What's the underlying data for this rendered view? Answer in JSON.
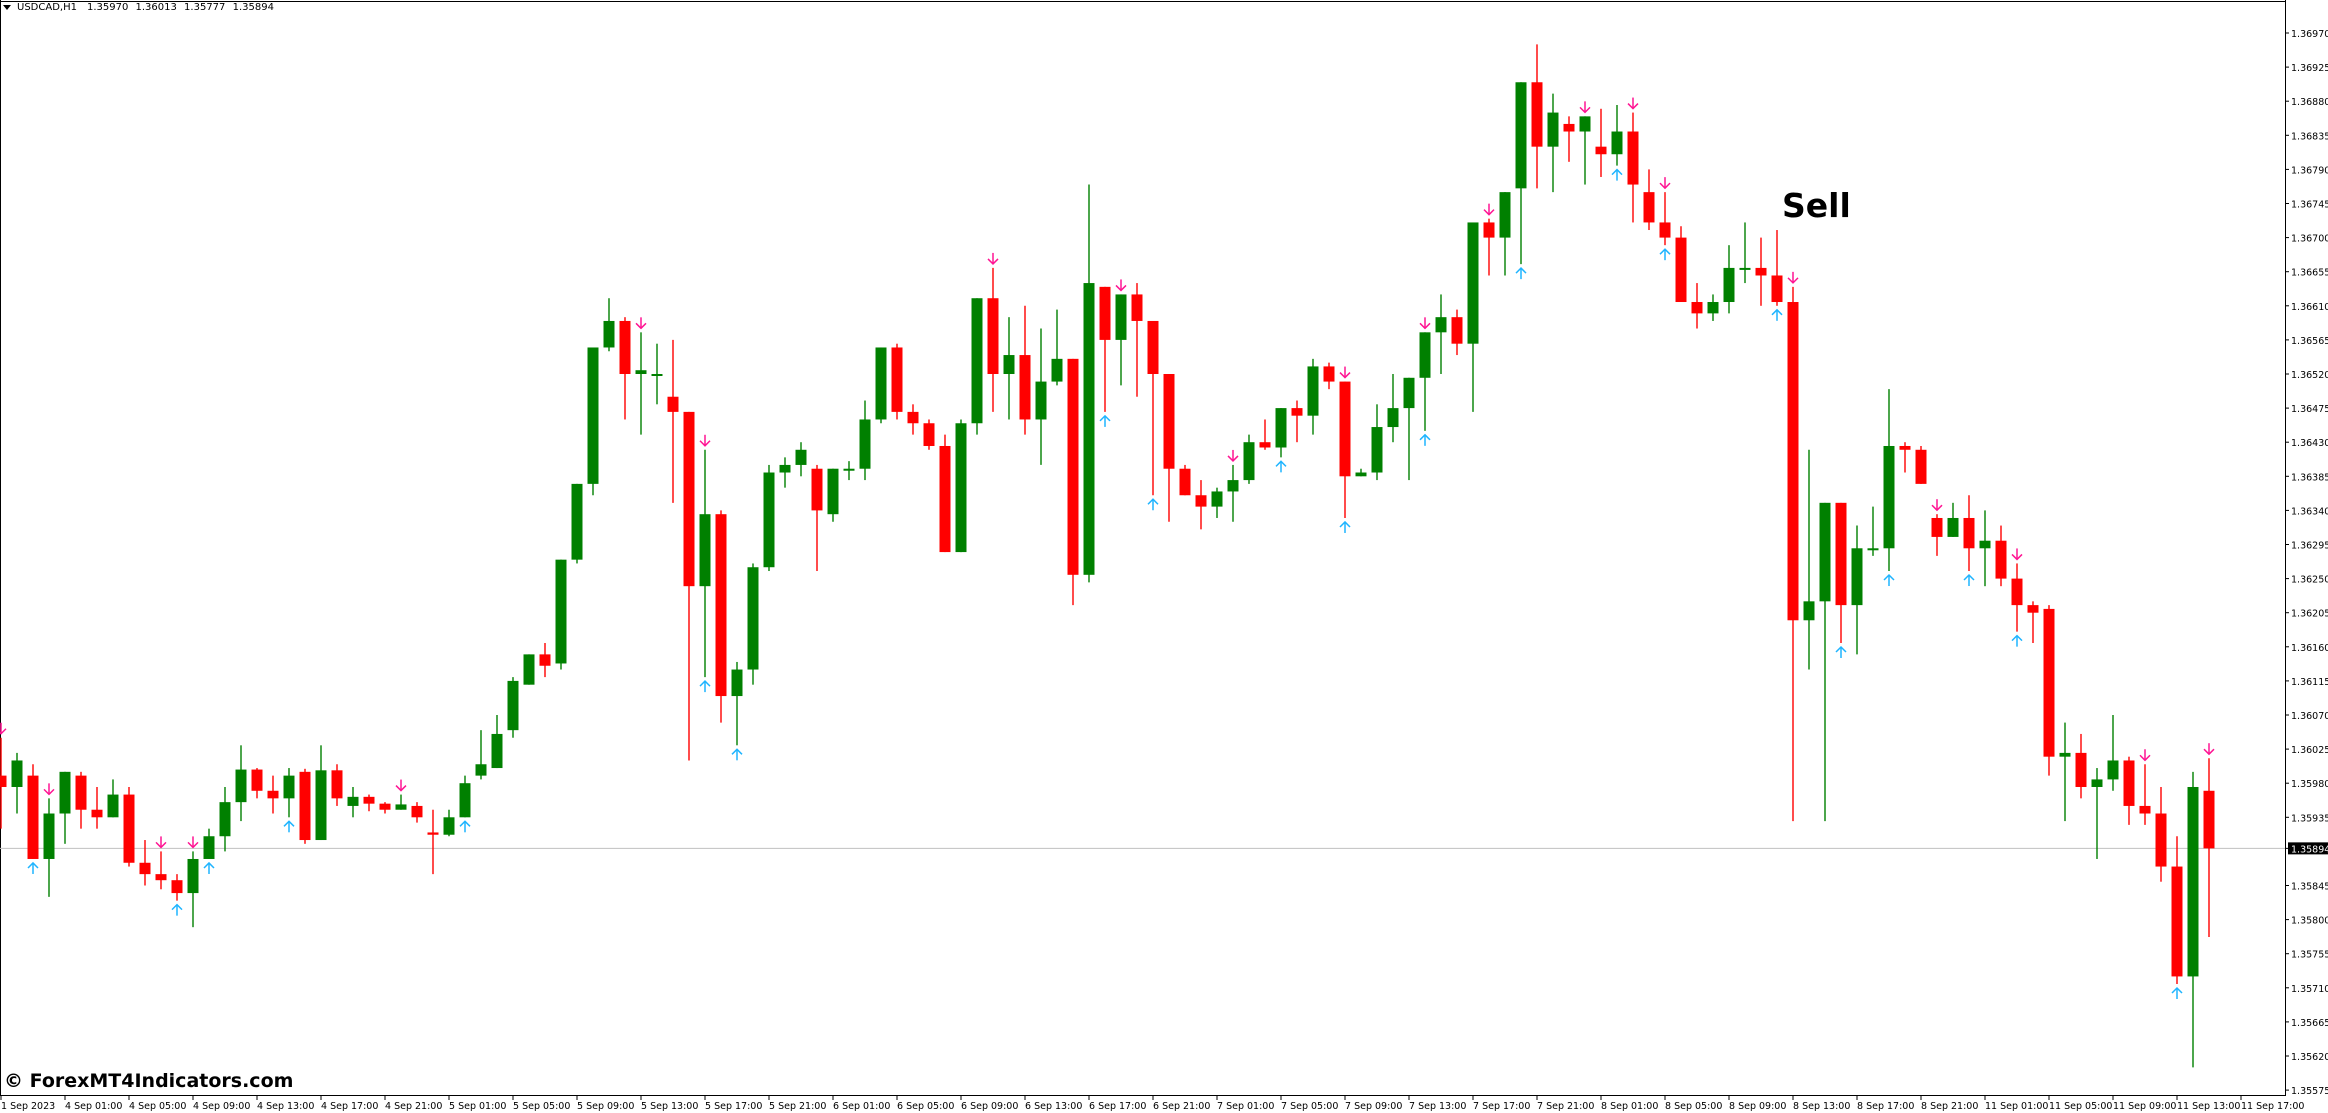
{
  "header": {
    "symbol": "USDCAD,H1",
    "open": "1.35970",
    "high": "1.36013",
    "low": "1.35777",
    "close": "1.35894"
  },
  "annotations": {
    "signal_label": "Sell",
    "watermark": "© ForexMT4Indicators.com",
    "current_price_label": "1.35894"
  },
  "colors": {
    "bull": "#008000",
    "bear": "#ff0000",
    "sell_arrow": "#ff1493",
    "buy_arrow": "#1eb4ff",
    "price_line": "#c0c0c0",
    "axis": "#000000",
    "price_label_bg": "#000000",
    "price_label_fg": "#ffffff"
  },
  "chart_data": {
    "type": "candlestick",
    "title": "USDCAD,H1",
    "xlabel": "",
    "ylabel": "",
    "ylim": [
      1.35555,
      1.3701
    ],
    "grid": false,
    "current_price": 1.35894,
    "y_ticks": [
      "1.36970",
      "1.36925",
      "1.36880",
      "1.36835",
      "1.36790",
      "1.36745",
      "1.36700",
      "1.36655",
      "1.36610",
      "1.36565",
      "1.36520",
      "1.36475",
      "1.36430",
      "1.36385",
      "1.36340",
      "1.36295",
      "1.36250",
      "1.36205",
      "1.36160",
      "1.36115",
      "1.36070",
      "1.36025",
      "1.35980",
      "1.35935",
      "1.35894",
      "1.35845",
      "1.35800",
      "1.35755",
      "1.35710",
      "1.35665",
      "1.35620",
      "1.35575"
    ],
    "x_ticks": [
      {
        "label": "1 Sep 2023",
        "index": 0
      },
      {
        "label": "4 Sep 01:00",
        "index": 4
      },
      {
        "label": "4 Sep 05:00",
        "index": 8
      },
      {
        "label": "4 Sep 09:00",
        "index": 12
      },
      {
        "label": "4 Sep 13:00",
        "index": 16
      },
      {
        "label": "4 Sep 17:00",
        "index": 20
      },
      {
        "label": "4 Sep 21:00",
        "index": 24
      },
      {
        "label": "5 Sep 01:00",
        "index": 28
      },
      {
        "label": "5 Sep 05:00",
        "index": 32
      },
      {
        "label": "5 Sep 09:00",
        "index": 36
      },
      {
        "label": "5 Sep 13:00",
        "index": 40
      },
      {
        "label": "5 Sep 17:00",
        "index": 44
      },
      {
        "label": "5 Sep 21:00",
        "index": 48
      },
      {
        "label": "6 Sep 01:00",
        "index": 52
      },
      {
        "label": "6 Sep 05:00",
        "index": 56
      },
      {
        "label": "6 Sep 09:00",
        "index": 60
      },
      {
        "label": "6 Sep 13:00",
        "index": 64
      },
      {
        "label": "6 Sep 17:00",
        "index": 68
      },
      {
        "label": "6 Sep 21:00",
        "index": 72
      },
      {
        "label": "7 Sep 01:00",
        "index": 76
      },
      {
        "label": "7 Sep 05:00",
        "index": 80
      },
      {
        "label": "7 Sep 09:00",
        "index": 84
      },
      {
        "label": "7 Sep 13:00",
        "index": 88
      },
      {
        "label": "7 Sep 17:00",
        "index": 92
      },
      {
        "label": "7 Sep 21:00",
        "index": 96
      },
      {
        "label": "8 Sep 01:00",
        "index": 100
      },
      {
        "label": "8 Sep 05:00",
        "index": 104
      },
      {
        "label": "8 Sep 09:00",
        "index": 108
      },
      {
        "label": "8 Sep 13:00",
        "index": 112
      },
      {
        "label": "8 Sep 17:00",
        "index": 116
      },
      {
        "label": "8 Sep 21:00",
        "index": 120
      },
      {
        "label": "11 Sep 01:00",
        "index": 124
      },
      {
        "label": "11 Sep 05:00",
        "index": 128
      },
      {
        "label": "11 Sep 09:00",
        "index": 132
      },
      {
        "label": "11 Sep 13:00",
        "index": 136
      },
      {
        "label": "11 Sep 17:00",
        "index": 140
      }
    ],
    "candles": [
      [
        1.3599,
        1.3604,
        1.3592,
        1.35975
      ],
      [
        1.35975,
        1.3602,
        1.3594,
        1.3601
      ],
      [
        1.3599,
        1.36005,
        1.3588,
        1.3588
      ],
      [
        1.3588,
        1.3596,
        1.3583,
        1.3594
      ],
      [
        1.3594,
        1.3599,
        1.359,
        1.35995
      ],
      [
        1.3599,
        1.35995,
        1.3592,
        1.35945
      ],
      [
        1.35945,
        1.35975,
        1.3592,
        1.35935
      ],
      [
        1.35935,
        1.35985,
        1.3595,
        1.35965
      ],
      [
        1.35965,
        1.35975,
        1.3587,
        1.35875
      ],
      [
        1.35875,
        1.35905,
        1.35845,
        1.3586
      ],
      [
        1.3586,
        1.3589,
        1.3584,
        1.35852
      ],
      [
        1.35852,
        1.3586,
        1.35825,
        1.35835
      ],
      [
        1.35835,
        1.3589,
        1.3579,
        1.3588
      ],
      [
        1.3588,
        1.3592,
        1.3588,
        1.3591
      ],
      [
        1.3591,
        1.35975,
        1.3589,
        1.35955
      ],
      [
        1.35955,
        1.3603,
        1.3593,
        1.35998
      ],
      [
        1.35998,
        1.36,
        1.3596,
        1.3597
      ],
      [
        1.3597,
        1.3599,
        1.3594,
        1.3596
      ],
      [
        1.3596,
        1.36,
        1.35935,
        1.3599
      ],
      [
        1.35995,
        1.35999,
        1.359,
        1.35905
      ],
      [
        1.35905,
        1.3603,
        1.35905,
        1.35997
      ],
      [
        1.35997,
        1.36005,
        1.3595,
        1.3596
      ],
      [
        1.3595,
        1.35975,
        1.35935,
        1.35962
      ],
      [
        1.35962,
        1.35965,
        1.35943,
        1.35953
      ],
      [
        1.35953,
        1.35955,
        1.3594,
        1.35945
      ],
      [
        1.35945,
        1.35965,
        1.35945,
        1.35952
      ],
      [
        1.3595,
        1.35955,
        1.35928,
        1.35935
      ],
      [
        1.35915,
        1.35945,
        1.3586,
        1.35912
      ],
      [
        1.35912,
        1.35945,
        1.3591,
        1.35935
      ],
      [
        1.35935,
        1.3599,
        1.35935,
        1.3598
      ],
      [
        1.3599,
        1.3605,
        1.35985,
        1.36005
      ],
      [
        1.36,
        1.3607,
        1.36,
        1.36045
      ],
      [
        1.3605,
        1.3612,
        1.3604,
        1.36115
      ],
      [
        1.3611,
        1.36145,
        1.3611,
        1.3615
      ],
      [
        1.3615,
        1.36165,
        1.3612,
        1.36135
      ],
      [
        1.36138,
        1.36195,
        1.3613,
        1.36275
      ],
      [
        1.36275,
        1.36345,
        1.3627,
        1.36375
      ],
      [
        1.36375,
        1.3637,
        1.3636,
        1.36555
      ],
      [
        1.36555,
        1.3662,
        1.3655,
        1.3659
      ],
      [
        1.3659,
        1.36595,
        1.3646,
        1.3652
      ],
      [
        1.3652,
        1.36575,
        1.3644,
        1.36525
      ],
      [
        1.3652,
        1.3656,
        1.3648,
        1.3652
      ],
      [
        1.3649,
        1.36565,
        1.3635,
        1.3647
      ],
      [
        1.3647,
        1.3647,
        1.3601,
        1.3624
      ],
      [
        1.3624,
        1.3642,
        1.3612,
        1.36335
      ],
      [
        1.36335,
        1.3634,
        1.3606,
        1.36095
      ],
      [
        1.36095,
        1.3614,
        1.3603,
        1.3613
      ],
      [
        1.3613,
        1.3627,
        1.3611,
        1.36265
      ],
      [
        1.36265,
        1.364,
        1.3626,
        1.3639
      ],
      [
        1.3639,
        1.3641,
        1.3637,
        1.364
      ],
      [
        1.364,
        1.3643,
        1.36385,
        1.3642
      ],
      [
        1.36395,
        1.364,
        1.3626,
        1.3634
      ],
      [
        1.36335,
        1.36395,
        1.36325,
        1.36395
      ],
      [
        1.36395,
        1.36405,
        1.3638,
        1.36395
      ],
      [
        1.36395,
        1.36485,
        1.3638,
        1.3646
      ],
      [
        1.3646,
        1.36545,
        1.36455,
        1.36555
      ],
      [
        1.36555,
        1.3656,
        1.3646,
        1.3647
      ],
      [
        1.3647,
        1.3648,
        1.3644,
        1.36455
      ],
      [
        1.36455,
        1.3646,
        1.3642,
        1.36425
      ],
      [
        1.36425,
        1.3644,
        1.3629,
        1.36285
      ],
      [
        1.36285,
        1.3646,
        1.36285,
        1.36455
      ],
      [
        1.36455,
        1.3662,
        1.3644,
        1.3662
      ],
      [
        1.3662,
        1.3666,
        1.3647,
        1.3652
      ],
      [
        1.3652,
        1.36595,
        1.3646,
        1.36545
      ],
      [
        1.36545,
        1.3661,
        1.3644,
        1.3646
      ],
      [
        1.3646,
        1.3658,
        1.364,
        1.3651
      ],
      [
        1.3651,
        1.36605,
        1.36505,
        1.3654
      ],
      [
        1.3654,
        1.3654,
        1.36215,
        1.36255
      ],
      [
        1.36255,
        1.3677,
        1.36245,
        1.3664
      ],
      [
        1.36635,
        1.3663,
        1.3647,
        1.36565
      ],
      [
        1.36565,
        1.36555,
        1.36505,
        1.36625
      ],
      [
        1.36625,
        1.3664,
        1.3649,
        1.3659
      ],
      [
        1.3659,
        1.3657,
        1.3636,
        1.3652
      ],
      [
        1.3652,
        1.3647,
        1.36325,
        1.36395
      ],
      [
        1.36395,
        1.364,
        1.36365,
        1.3636
      ],
      [
        1.3636,
        1.3638,
        1.36315,
        1.36345
      ],
      [
        1.36345,
        1.3637,
        1.3633,
        1.36365
      ],
      [
        1.36365,
        1.364,
        1.36325,
        1.3638
      ],
      [
        1.3638,
        1.3644,
        1.36375,
        1.3643
      ],
      [
        1.3643,
        1.3646,
        1.3642,
        1.36423
      ],
      [
        1.36423,
        1.36475,
        1.3641,
        1.36475
      ],
      [
        1.36475,
        1.36485,
        1.3643,
        1.36465
      ],
      [
        1.36465,
        1.3654,
        1.3644,
        1.3653
      ],
      [
        1.3653,
        1.36535,
        1.365,
        1.3651
      ],
      [
        1.3651,
        1.3651,
        1.3633,
        1.36385
      ],
      [
        1.36385,
        1.36395,
        1.36385,
        1.3639
      ],
      [
        1.3639,
        1.3648,
        1.3638,
        1.3645
      ],
      [
        1.3645,
        1.3652,
        1.3643,
        1.36475
      ],
      [
        1.36475,
        1.365,
        1.3638,
        1.36515
      ],
      [
        1.36515,
        1.3657,
        1.36445,
        1.36575
      ],
      [
        1.36575,
        1.36625,
        1.3652,
        1.36595
      ],
      [
        1.36595,
        1.36605,
        1.36545,
        1.3656
      ],
      [
        1.3656,
        1.3664,
        1.3647,
        1.3672
      ],
      [
        1.3672,
        1.36725,
        1.3665,
        1.367
      ],
      [
        1.367,
        1.3673,
        1.3665,
        1.3676
      ],
      [
        1.36765,
        1.3679,
        1.36665,
        1.36905
      ],
      [
        1.36905,
        1.36955,
        1.36765,
        1.3682
      ],
      [
        1.3682,
        1.3689,
        1.3676,
        1.36865
      ],
      [
        1.3685,
        1.3686,
        1.368,
        1.3684
      ],
      [
        1.3684,
        1.3682,
        1.3677,
        1.3686
      ],
      [
        1.3682,
        1.3687,
        1.3678,
        1.3681
      ],
      [
        1.3681,
        1.36875,
        1.36795,
        1.3684
      ],
      [
        1.3684,
        1.36865,
        1.3672,
        1.3677
      ],
      [
        1.3676,
        1.3679,
        1.3671,
        1.3672
      ],
      [
        1.3672,
        1.3676,
        1.3669,
        1.367
      ],
      [
        1.367,
        1.36715,
        1.3665,
        1.36615
      ],
      [
        1.36615,
        1.3664,
        1.3658,
        1.366
      ],
      [
        1.366,
        1.36625,
        1.3659,
        1.36615
      ],
      [
        1.36615,
        1.3669,
        1.366,
        1.3666
      ],
      [
        1.3666,
        1.3672,
        1.3664,
        1.3666
      ],
      [
        1.3666,
        1.367,
        1.3661,
        1.3665
      ],
      [
        1.3665,
        1.3671,
        1.3661,
        1.36615
      ],
      [
        1.36615,
        1.36635,
        1.3593,
        1.36195
      ],
      [
        1.36195,
        1.3642,
        1.3613,
        1.3622
      ],
      [
        1.3622,
        1.36345,
        1.3593,
        1.3635
      ],
      [
        1.3635,
        1.3634,
        1.36165,
        1.36215
      ],
      [
        1.36215,
        1.3632,
        1.3615,
        1.3629
      ],
      [
        1.3629,
        1.36345,
        1.3628,
        1.3629
      ],
      [
        1.3629,
        1.365,
        1.3626,
        1.36425
      ],
      [
        1.36425,
        1.3643,
        1.3639,
        1.3642
      ],
      [
        1.3642,
        1.36425,
        1.36375,
        1.36375
      ],
      [
        1.3633,
        1.36335,
        1.3628,
        1.36305
      ],
      [
        1.36305,
        1.3635,
        1.3632,
        1.3633
      ],
      [
        1.3633,
        1.3636,
        1.3626,
        1.3629
      ],
      [
        1.3629,
        1.3634,
        1.3624,
        1.363
      ],
      [
        1.363,
        1.3632,
        1.3624,
        1.3625
      ],
      [
        1.3625,
        1.3627,
        1.3618,
        1.36215
      ],
      [
        1.36215,
        1.3622,
        1.36165,
        1.36205
      ],
      [
        1.3621,
        1.36215,
        1.3599,
        1.36015
      ],
      [
        1.36015,
        1.3606,
        1.3593,
        1.3602
      ],
      [
        1.3602,
        1.36045,
        1.3596,
        1.35975
      ],
      [
        1.35975,
        1.36,
        1.3588,
        1.35985
      ],
      [
        1.35985,
        1.3607,
        1.3597,
        1.3601
      ],
      [
        1.3601,
        1.36015,
        1.35925,
        1.3595
      ],
      [
        1.3595,
        1.36005,
        1.35925,
        1.3594
      ],
      [
        1.3594,
        1.35975,
        1.3585,
        1.3587
      ],
      [
        1.3587,
        1.3591,
        1.35715,
        1.35725
      ],
      [
        1.35725,
        1.35995,
        1.35605,
        1.35975
      ],
      [
        1.3597,
        1.36013,
        1.35777,
        1.35894
      ]
    ],
    "sell_arrows": [
      0,
      3,
      10,
      12,
      25,
      40,
      44,
      62,
      70,
      77,
      84,
      89,
      93,
      99,
      102,
      104,
      112,
      121,
      126,
      134,
      138
    ],
    "buy_arrows": [
      2,
      11,
      13,
      18,
      29,
      44,
      46,
      69,
      72,
      80,
      84,
      89,
      95,
      101,
      104,
      111,
      115,
      118,
      123,
      126,
      136,
      140
    ],
    "signal_text": {
      "label": "Sell",
      "index": 112
    }
  }
}
